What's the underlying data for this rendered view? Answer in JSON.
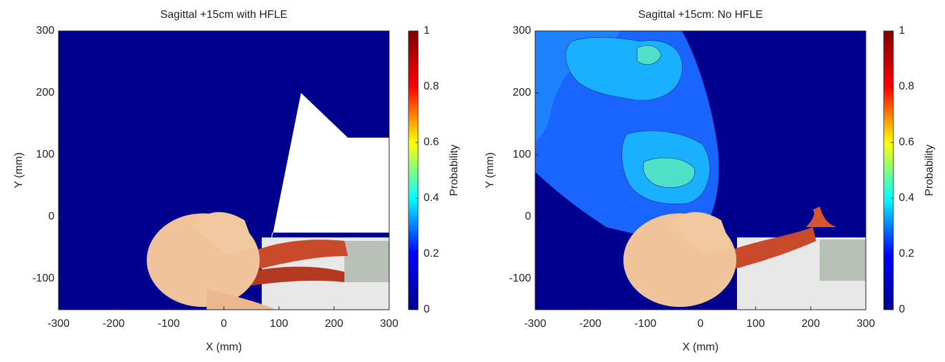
{
  "chart_data": [
    {
      "type": "heatmap",
      "title": "Sagittal +15cm with HFLE",
      "xlabel": "X (mm)",
      "ylabel": "Y (mm)",
      "xlim": [
        -300,
        300
      ],
      "ylim": [
        -150,
        300
      ],
      "xticks": [
        -300,
        -200,
        -100,
        0,
        100,
        200,
        300
      ],
      "yticks": [
        -100,
        0,
        100,
        200,
        300
      ],
      "colorbar": {
        "label": "Probability",
        "lim": [
          0,
          1
        ],
        "ticks": [
          0,
          0.2,
          0.4,
          0.6,
          0.8,
          1
        ]
      },
      "colormap": [
        "#00008f",
        "#0000ff",
        "#00ffff",
        "#ffff00",
        "#ff0000",
        "#800000"
      ]
    },
    {
      "type": "heatmap",
      "title": "Sagittal +15cm:  No HFLE",
      "xlabel": "X (mm)",
      "ylabel": "Y (mm)",
      "xlim": [
        -300,
        300
      ],
      "ylim": [
        -150,
        300
      ],
      "xticks": [
        -300,
        -200,
        -100,
        0,
        100,
        200,
        300
      ],
      "yticks": [
        -100,
        0,
        100,
        200,
        300
      ],
      "colorbar": {
        "label": "Probability",
        "lim": [
          0,
          1
        ],
        "ticks": [
          0,
          0.2,
          0.4,
          0.6,
          0.8,
          1
        ]
      },
      "colormap": [
        "#00008f",
        "#0000ff",
        "#00ffff",
        "#ffff00",
        "#ff0000",
        "#800000"
      ]
    }
  ]
}
